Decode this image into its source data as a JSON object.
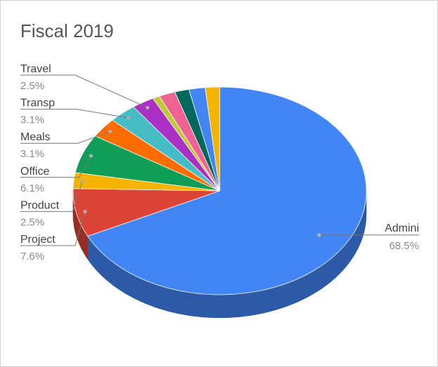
{
  "chart_data": {
    "type": "pie",
    "title": "Fiscal 2019",
    "three_d": true,
    "legend": "none",
    "slices": [
      {
        "label": "Admini",
        "value_label": "68.5%",
        "value": 68.5,
        "color": "#4285f4"
      },
      {
        "label": "Project",
        "value_label": "7.6%",
        "value": 7.6,
        "color": "#db4437"
      },
      {
        "label": "Product",
        "value_label": "2.5%",
        "value": 2.5,
        "color": "#f4b400"
      },
      {
        "label": "Office",
        "value_label": "6.1%",
        "value": 6.1,
        "color": "#0f9d58"
      },
      {
        "label": "Meals",
        "value_label": "3.1%",
        "value": 3.1,
        "color": "#ff6d00"
      },
      {
        "label": "Transp",
        "value_label": "3.1%",
        "value": 3.1,
        "color": "#46bdc6"
      },
      {
        "label": "Travel",
        "value_label": "2.5%",
        "value": 2.5,
        "color": "#ab30c4"
      },
      {
        "label": "",
        "value_label": "",
        "value": 0.8,
        "color": "#c0ca33"
      },
      {
        "label": "",
        "value_label": "",
        "value": 1.8,
        "color": "#f06292"
      },
      {
        "label": "",
        "value_label": "",
        "value": 1.6,
        "color": "#00695c"
      },
      {
        "label": "",
        "value_label": "",
        "value": 1.8,
        "color": "#4285f4"
      },
      {
        "label": "",
        "value_label": "",
        "value": 1.6,
        "color": "#f4b400"
      }
    ]
  }
}
